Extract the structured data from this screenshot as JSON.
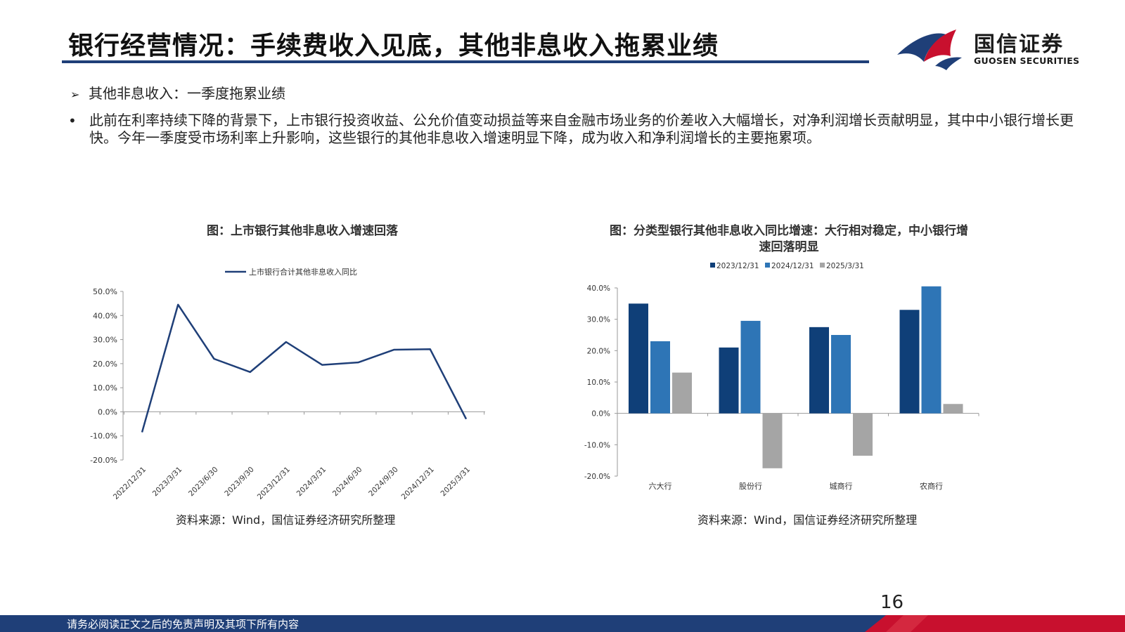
{
  "header": {
    "title": "银行经营情况：手续费收入见底，其他非息收入拖累业绩",
    "logo_cn": "国信证券",
    "logo_en": "GUOSEN SECURITIES"
  },
  "body": {
    "subheading": "其他非息收入：一季度拖累业绩",
    "paragraph": "此前在利率持续下降的背景下，上市银行投资收益、公允价值变动损益等来自金融市场业务的价差收入大幅增长，对净利润增长贡献明显，其中中小银行增长更快。今年一季度受市场利率上升影响，这些银行的其他非息收入增速明显下降，成为收入和净利润增长的主要拖累项。"
  },
  "chart_data": [
    {
      "type": "line",
      "title": "图：上市银行其他非息收入增速回落",
      "categories": [
        "2022/12/31",
        "2023/3/31",
        "2023/6/30",
        "2023/9/30",
        "2023/12/31",
        "2024/3/31",
        "2024/6/30",
        "2024/9/30",
        "2024/12/31",
        "2025/3/31"
      ],
      "series": [
        {
          "name": "上市银行合计其他非息收入同比",
          "values": [
            -8.5,
            44.5,
            22.0,
            16.5,
            29.0,
            19.5,
            20.5,
            25.8,
            26.0,
            -3.0
          ],
          "color": "#1f3f78"
        }
      ],
      "ylim": [
        -20,
        50
      ],
      "yticks": [
        "-20.0%",
        "-10.0%",
        "0.0%",
        "10.0%",
        "20.0%",
        "30.0%",
        "40.0%",
        "50.0%"
      ],
      "legend": "top",
      "source": "资料来源：Wind，国信证券经济研究所整理"
    },
    {
      "type": "bar",
      "title": "图：分类型银行其他非息收入同比增速：大行相对稳定，中小银行增速回落明显",
      "categories": [
        "六大行",
        "股份行",
        "城商行",
        "农商行"
      ],
      "series": [
        {
          "name": "2023/12/31",
          "values": [
            35.0,
            21.0,
            27.5,
            33.0
          ],
          "color": "#0f3f78"
        },
        {
          "name": "2024/12/31",
          "values": [
            23.0,
            29.5,
            25.0,
            40.5
          ],
          "color": "#2e75b6"
        },
        {
          "name": "2025/3/31",
          "values": [
            13.0,
            -17.5,
            -13.5,
            3.0
          ],
          "color": "#a5a5a5"
        }
      ],
      "ylim": [
        -20,
        40
      ],
      "yticks": [
        "-20.0%",
        "-10.0%",
        "0.0%",
        "10.0%",
        "20.0%",
        "30.0%",
        "40.0%"
      ],
      "legend": "top",
      "source": "资料来源：Wind，国信证券经济研究所整理"
    }
  ],
  "footer": {
    "page_number": "16",
    "disclaimer": "请务必阅读正文之后的免责声明及其项下所有内容"
  },
  "colors": {
    "brand_blue": "#1f3f78",
    "brand_red": "#c8102e"
  }
}
